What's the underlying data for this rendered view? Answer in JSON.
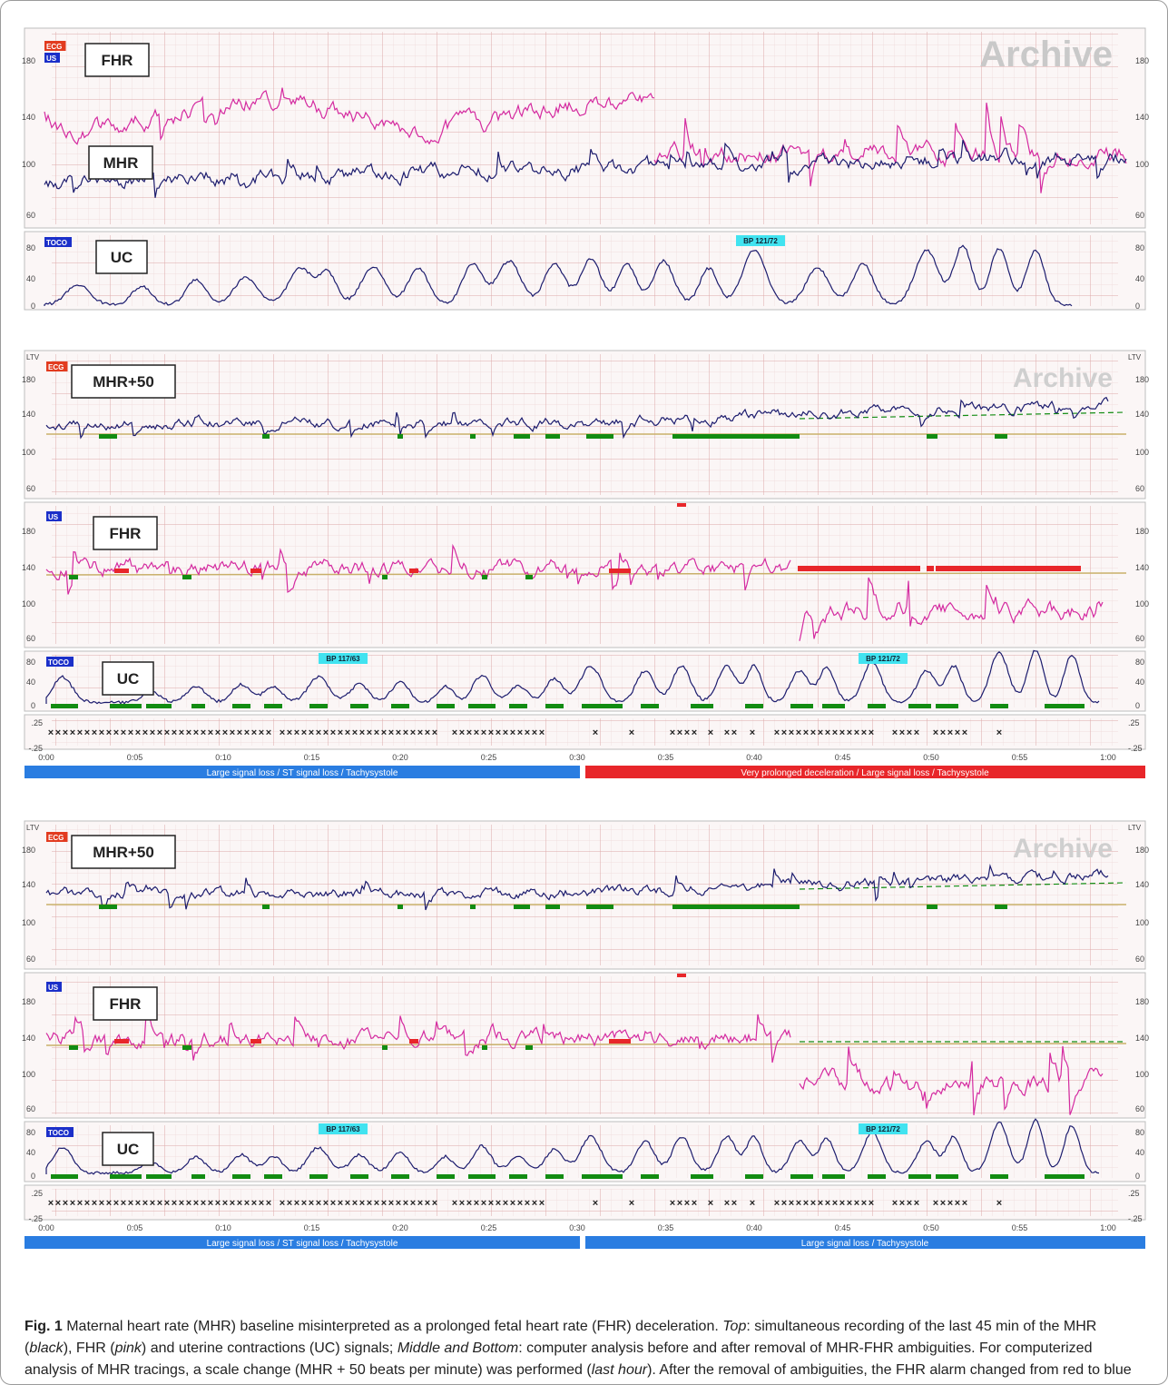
{
  "archive_watermark": "Archive",
  "badges": {
    "ecg": "ECG",
    "us": "US",
    "toco": "TOCO",
    "ltv": "LTV"
  },
  "figure1": {
    "label_fhr": "FHR",
    "label_mhr": "MHR",
    "label_uc": "UC",
    "bp": "BP 121/72",
    "hr_ticks": [
      "180",
      "140",
      "100",
      "60"
    ],
    "uc_ticks": [
      "80",
      "40",
      "0"
    ]
  },
  "figure2": {
    "label_mhr": "MHR+50",
    "label_fhr": "FHR",
    "label_uc": "UC",
    "bp1": "BP 117/63",
    "bp2": "BP 121/72",
    "hr_ticks": [
      "180",
      "140",
      "100",
      "60"
    ],
    "uc_ticks": [
      "80",
      "40",
      "0"
    ],
    "st_ticks": [
      ".25",
      "-.25"
    ],
    "time_ticks": [
      "0:00",
      "0:05",
      "0:10",
      "0:15",
      "0:20",
      "0:25",
      "0:30",
      "0:35",
      "0:40",
      "0:45",
      "0:50",
      "0:55",
      "1:00"
    ],
    "status_left": "Large signal loss / ST signal loss / Tachysystole",
    "status_right": "Very prolonged deceleration / Large signal loss / Tachysystole",
    "status_left_color": "#2a7de1",
    "status_right_color": "#e8262a"
  },
  "figure3": {
    "label_mhr": "MHR+50",
    "label_fhr": "FHR",
    "label_uc": "UC",
    "bp1": "BP 117/63",
    "bp2": "BP 121/72",
    "hr_ticks": [
      "180",
      "140",
      "100",
      "60"
    ],
    "uc_ticks": [
      "80",
      "40",
      "0"
    ],
    "st_ticks": [
      ".25",
      "-.25"
    ],
    "time_ticks": [
      "0:00",
      "0:05",
      "0:10",
      "0:15",
      "0:20",
      "0:25",
      "0:30",
      "0:35",
      "0:40",
      "0:45",
      "0:50",
      "0:55",
      "1:00"
    ],
    "status_left": "Large signal loss / ST signal loss / Tachysystole",
    "status_right": "Large signal loss / Tachysystole",
    "status_left_color": "#2a7de1",
    "status_right_color": "#2a7de1"
  },
  "caption": {
    "fig_label": "Fig. 1",
    "text_1": " Maternal heart rate (MHR) baseline misinterpreted as a prolonged fetal heart rate (FHR) deceleration. ",
    "top": "Top",
    "text_2": ": simultaneous recording of the last 45 min of the MHR (",
    "black": "black",
    "text_3": "), FHR (",
    "pink": "pink",
    "text_4": ") and uterine contractions (UC) signals; ",
    "middle_bottom": "Middle and Bottom",
    "text_5": ": computer analysis before and after removal of MHR-FHR ambiguities. For computerized analysis of MHR tracings, a scale change (MHR + 50 beats per minute) was performed (",
    "last_hour": "last hour",
    "text_6": "). After the removal of ambiguities, the FHR alarm changed from red to blue"
  },
  "colors": {
    "mhr": "#1c1c6e",
    "fhr": "#d42aa0",
    "uc": "#1c1c6e",
    "baseline": "#c9b06a",
    "marker_green": "#128c12",
    "marker_red": "#e8262a",
    "grid": "#e3bcbc",
    "panel_bg": "#fbf6f6"
  }
}
